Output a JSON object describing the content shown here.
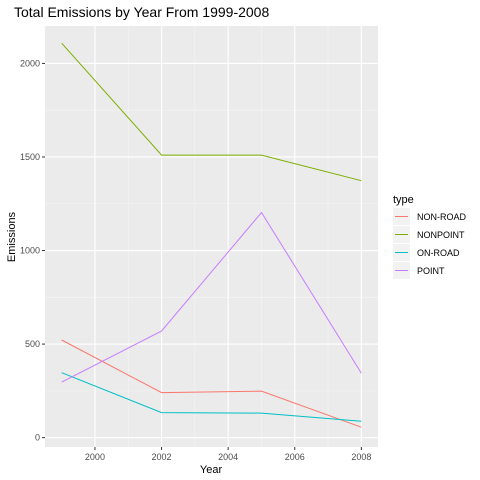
{
  "chart_data": {
    "type": "line",
    "title": "Total Emissions by Year From 1999-2008",
    "xlabel": "Year",
    "ylabel": "Emissions",
    "x": [
      1999,
      2002,
      2005,
      2008
    ],
    "xlim": [
      1998.5,
      2008.5
    ],
    "ylim": [
      -50,
      2200
    ],
    "x_ticks": [
      2000,
      2002,
      2004,
      2006,
      2008
    ],
    "y_ticks": [
      0,
      500,
      1000,
      1500,
      2000
    ],
    "grid": true,
    "legend": {
      "title": "type",
      "position": "right"
    },
    "series": [
      {
        "name": "NON-ROAD",
        "color": "#F8766D",
        "values": [
          522,
          241,
          249,
          56
        ]
      },
      {
        "name": "NONPOINT",
        "color": "#7CAE00",
        "values": [
          2108,
          1510,
          1510,
          1373
        ]
      },
      {
        "name": "ON-ROAD",
        "color": "#00BFC4",
        "values": [
          347,
          134,
          131,
          88
        ]
      },
      {
        "name": "POINT",
        "color": "#C77CFF",
        "values": [
          297,
          570,
          1203,
          345
        ]
      }
    ]
  }
}
